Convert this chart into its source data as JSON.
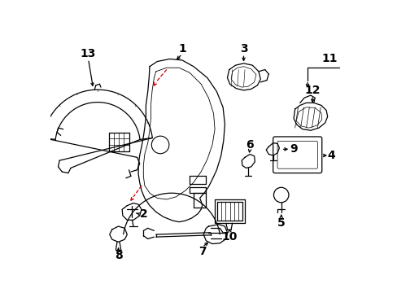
{
  "background_color": "#ffffff",
  "fig_width": 4.89,
  "fig_height": 3.6,
  "dpi": 100,
  "line_color": "#000000",
  "red_color": "#cc0000",
  "label_fontsize": 10,
  "xlim": [
    0,
    489
  ],
  "ylim": [
    0,
    360
  ]
}
